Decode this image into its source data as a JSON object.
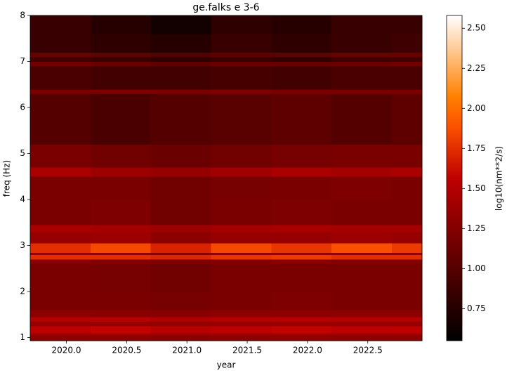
{
  "chart_data": {
    "type": "heatmap",
    "title": "ge.falks e 3-6",
    "x_label": "year",
    "y_label": "freq (Hz)",
    "colorbar_label": "log10(nm**2/s)",
    "colormap": "gist_heat",
    "x_edges": [
      2019.7,
      2020.2,
      2020.7,
      2021.2,
      2021.7,
      2022.2,
      2022.7,
      2022.95
    ],
    "y_edges": [
      0.93,
      1.05,
      1.1,
      1.25,
      1.35,
      1.45,
      1.6,
      2.0,
      2.6,
      2.7,
      2.8,
      2.85,
      3.05,
      3.3,
      3.45,
      4.0,
      4.5,
      4.7,
      5.2,
      6.3,
      6.4,
      6.9,
      7.0,
      7.1,
      7.2,
      7.6,
      8.0
    ],
    "z": [
      [
        1.3,
        1.3,
        1.28,
        1.3,
        1.32,
        1.3,
        1.3
      ],
      [
        1.4,
        1.42,
        1.4,
        1.4,
        1.42,
        1.4,
        1.4
      ],
      [
        1.55,
        1.58,
        1.52,
        1.55,
        1.58,
        1.55,
        1.56
      ],
      [
        1.35,
        1.35,
        1.33,
        1.35,
        1.36,
        1.35,
        1.35
      ],
      [
        1.5,
        1.52,
        1.48,
        1.5,
        1.52,
        1.5,
        1.5
      ],
      [
        1.3,
        1.28,
        1.27,
        1.3,
        1.3,
        1.3,
        1.3
      ],
      [
        1.2,
        1.2,
        1.18,
        1.2,
        1.22,
        1.2,
        1.2
      ],
      [
        1.2,
        1.18,
        1.15,
        1.2,
        1.2,
        1.2,
        1.2
      ],
      [
        1.28,
        1.25,
        1.22,
        1.25,
        1.28,
        1.25,
        1.25
      ],
      [
        1.75,
        1.75,
        1.72,
        1.78,
        1.8,
        1.75,
        1.75
      ],
      [
        1.35,
        1.33,
        1.3,
        1.32,
        1.35,
        1.33,
        1.33
      ],
      [
        1.75,
        1.85,
        1.7,
        1.85,
        1.78,
        1.88,
        1.8
      ],
      [
        1.35,
        1.38,
        1.3,
        1.35,
        1.35,
        1.38,
        1.35
      ],
      [
        1.45,
        1.42,
        1.38,
        1.42,
        1.45,
        1.42,
        1.42
      ],
      [
        1.2,
        1.22,
        1.15,
        1.2,
        1.22,
        1.2,
        1.2
      ],
      [
        1.2,
        1.2,
        1.15,
        1.18,
        1.2,
        1.22,
        1.2
      ],
      [
        1.45,
        1.38,
        1.35,
        1.4,
        1.45,
        1.42,
        1.45
      ],
      [
        1.2,
        1.15,
        1.12,
        1.15,
        1.18,
        1.2,
        1.2
      ],
      [
        1.0,
        0.95,
        1.0,
        1.02,
        1.05,
        1.0,
        1.05
      ],
      [
        1.2,
        1.2,
        1.2,
        1.22,
        1.2,
        1.2,
        1.2
      ],
      [
        0.95,
        0.9,
        0.9,
        0.92,
        0.9,
        0.95,
        0.95
      ],
      [
        1.15,
        1.1,
        1.05,
        1.1,
        1.1,
        1.12,
        1.15
      ],
      [
        0.9,
        0.85,
        0.8,
        0.85,
        0.8,
        0.88,
        0.9
      ],
      [
        1.1,
        1.05,
        1.0,
        1.05,
        1.05,
        1.1,
        1.1
      ],
      [
        0.85,
        0.8,
        0.75,
        0.85,
        0.8,
        0.85,
        0.88
      ],
      [
        0.85,
        0.75,
        0.65,
        0.8,
        0.75,
        0.85,
        0.85
      ]
    ],
    "xlim": [
      2019.7,
      2022.95
    ],
    "xticks": [
      {
        "value": 2020,
        "label": "2020.0"
      },
      2020.5,
      {
        "value": 2021,
        "label": "2021.0"
      },
      2021.5,
      {
        "value": 2022,
        "label": "2022.0"
      },
      2022.5
    ],
    "ylim": [
      0.93,
      8
    ],
    "yticks": [
      1,
      2,
      3,
      4,
      5,
      6,
      7,
      8
    ],
    "clim": [
      0.55,
      2.58
    ],
    "cticks": [
      0.75,
      {
        "value": 1,
        "label": "1.00"
      },
      1.25,
      {
        "value": 1.5,
        "label": "1.50"
      },
      1.75,
      {
        "value": 2,
        "label": "2.00"
      },
      2.25,
      {
        "value": 2.5,
        "label": "2.50"
      }
    ]
  }
}
